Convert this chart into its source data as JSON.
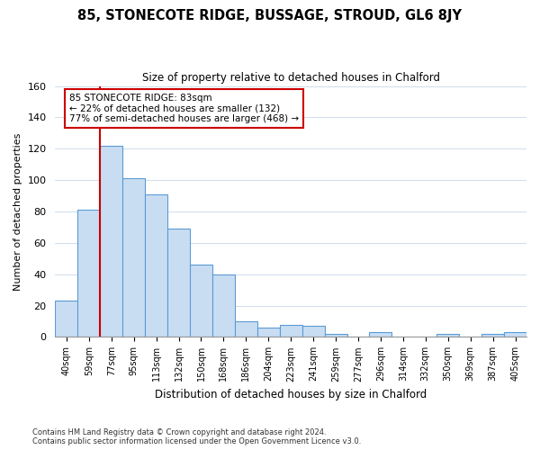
{
  "title": "85, STONECOTE RIDGE, BUSSAGE, STROUD, GL6 8JY",
  "subtitle": "Size of property relative to detached houses in Chalford",
  "xlabel": "Distribution of detached houses by size in Chalford",
  "ylabel": "Number of detached properties",
  "bar_labels": [
    "40sqm",
    "59sqm",
    "77sqm",
    "95sqm",
    "113sqm",
    "132sqm",
    "150sqm",
    "168sqm",
    "186sqm",
    "204sqm",
    "223sqm",
    "241sqm",
    "259sqm",
    "277sqm",
    "296sqm",
    "314sqm",
    "332sqm",
    "350sqm",
    "369sqm",
    "387sqm",
    "405sqm"
  ],
  "bar_heights": [
    23,
    81,
    122,
    101,
    91,
    69,
    46,
    40,
    10,
    6,
    8,
    7,
    2,
    0,
    3,
    0,
    0,
    2,
    0,
    2,
    3
  ],
  "bar_color": "#c9ddf2",
  "bar_edge_color": "#5b9bd5",
  "ylim": [
    0,
    160
  ],
  "yticks": [
    0,
    20,
    40,
    60,
    80,
    100,
    120,
    140,
    160
  ],
  "vline_color": "#cc0000",
  "annotation_title": "85 STONECOTE RIDGE: 83sqm",
  "annotation_line1": "← 22% of detached houses are smaller (132)",
  "annotation_line2": "77% of semi-detached houses are larger (468) →",
  "annotation_box_color": "#ffffff",
  "annotation_box_edge": "#cc0000",
  "footer_line1": "Contains HM Land Registry data © Crown copyright and database right 2024.",
  "footer_line2": "Contains public sector information licensed under the Open Government Licence v3.0.",
  "background_color": "#ffffff",
  "grid_color": "#c8d8e8"
}
